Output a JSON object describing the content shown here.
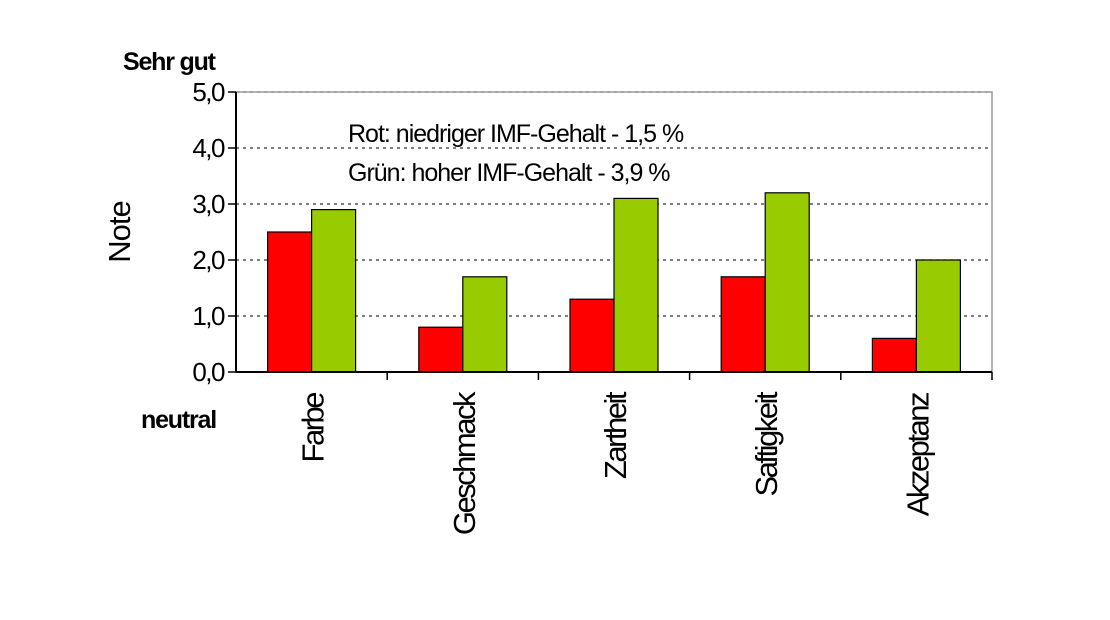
{
  "chart_data": {
    "type": "bar",
    "categories": [
      "Farbe",
      "Geschmack",
      "Zartheit",
      "Saftigkeit",
      "Akzeptanz"
    ],
    "series": [
      {
        "values": [
          2.5,
          0.8,
          1.3,
          1.7,
          0.6
        ],
        "color": "#ff0000"
      },
      {
        "values": [
          2.9,
          1.7,
          3.1,
          3.2,
          2.0
        ],
        "color": "#99cc00"
      }
    ],
    "ylabel": "Note",
    "ylim": [
      0,
      5
    ],
    "yticks": [
      "0,0",
      "1,0",
      "2,0",
      "3,0",
      "4,0",
      "5,0"
    ],
    "top_label": "Sehr gut",
    "bottom_label": "neutral",
    "annotations": [
      "Rot:  niedriger IMF-Gehalt - 1,5 %",
      "Grün: hoher IMF-Gehalt - 3,9 %"
    ],
    "grid": true,
    "grid_style": "dotted"
  }
}
